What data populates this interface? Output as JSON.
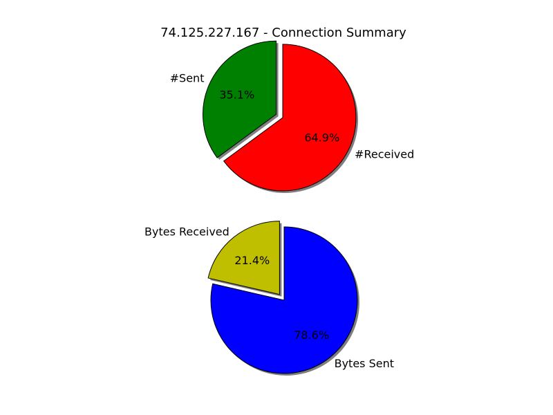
{
  "title": "74.125.227.167 - Connection Summary",
  "chart_data": [
    {
      "type": "pie",
      "labels": [
        "#Sent",
        "#Received"
      ],
      "values": [
        35.1,
        64.9
      ],
      "autopct": [
        "35.1%",
        "64.9%"
      ],
      "colors": [
        "#008000",
        "#ff0000"
      ],
      "exploded": "#Sent",
      "shadow": true
    },
    {
      "type": "pie",
      "labels": [
        "Bytes Received",
        "Bytes Sent"
      ],
      "values": [
        21.4,
        78.6
      ],
      "autopct": [
        "21.4%",
        "78.6%"
      ],
      "colors": [
        "#bfbf00",
        "#0000ff"
      ],
      "exploded": "Bytes Received",
      "shadow": true
    }
  ]
}
